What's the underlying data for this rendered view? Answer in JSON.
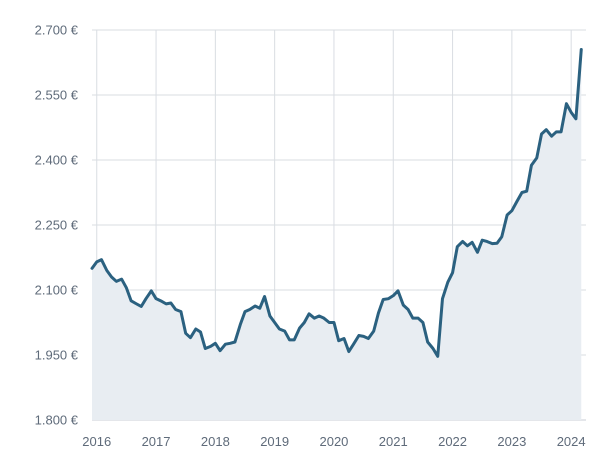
{
  "chart_data": {
    "type": "area",
    "title": "",
    "xlabel": "",
    "ylabel": "",
    "xlim": [
      2015.92,
      2024.25
    ],
    "ylim": [
      1800,
      2700
    ],
    "grid": true,
    "legend": "none",
    "y_ticks": [
      {
        "value": 1800,
        "label": "1.800 €"
      },
      {
        "value": 1950,
        "label": "1.950 €"
      },
      {
        "value": 2100,
        "label": "2.100 €"
      },
      {
        "value": 2250,
        "label": "2.250 €"
      },
      {
        "value": 2400,
        "label": "2.400 €"
      },
      {
        "value": 2550,
        "label": "2.550 €"
      },
      {
        "value": 2700,
        "label": "2.700 €"
      }
    ],
    "x_ticks": [
      {
        "value": 2016,
        "label": "2016"
      },
      {
        "value": 2017,
        "label": "2017"
      },
      {
        "value": 2018,
        "label": "2018"
      },
      {
        "value": 2019,
        "label": "2019"
      },
      {
        "value": 2020,
        "label": "2020"
      },
      {
        "value": 2021,
        "label": "2021"
      },
      {
        "value": 2022,
        "label": "2022"
      },
      {
        "value": 2023,
        "label": "2023"
      },
      {
        "value": 2024,
        "label": "2024"
      }
    ],
    "series": [
      {
        "color": "#2b6180",
        "fill": "#e8edf2",
        "points": [
          [
            2015.92,
            2150
          ],
          [
            2016.0,
            2165
          ],
          [
            2016.08,
            2170
          ],
          [
            2016.17,
            2145
          ],
          [
            2016.25,
            2130
          ],
          [
            2016.33,
            2120
          ],
          [
            2016.42,
            2125
          ],
          [
            2016.5,
            2105
          ],
          [
            2016.58,
            2075
          ],
          [
            2016.67,
            2068
          ],
          [
            2016.75,
            2062
          ],
          [
            2016.83,
            2080
          ],
          [
            2016.92,
            2098
          ],
          [
            2017.0,
            2080
          ],
          [
            2017.08,
            2075
          ],
          [
            2017.17,
            2068
          ],
          [
            2017.25,
            2070
          ],
          [
            2017.33,
            2055
          ],
          [
            2017.42,
            2050
          ],
          [
            2017.5,
            2000
          ],
          [
            2017.58,
            1990
          ],
          [
            2017.67,
            2010
          ],
          [
            2017.75,
            2003
          ],
          [
            2017.83,
            1965
          ],
          [
            2017.92,
            1970
          ],
          [
            2018.0,
            1977
          ],
          [
            2018.08,
            1960
          ],
          [
            2018.17,
            1975
          ],
          [
            2018.25,
            1977
          ],
          [
            2018.33,
            1980
          ],
          [
            2018.42,
            2020
          ],
          [
            2018.5,
            2050
          ],
          [
            2018.58,
            2055
          ],
          [
            2018.67,
            2063
          ],
          [
            2018.75,
            2058
          ],
          [
            2018.83,
            2085
          ],
          [
            2018.92,
            2040
          ],
          [
            2019.0,
            2025
          ],
          [
            2019.08,
            2010
          ],
          [
            2019.17,
            2005
          ],
          [
            2019.25,
            1985
          ],
          [
            2019.33,
            1985
          ],
          [
            2019.42,
            2012
          ],
          [
            2019.5,
            2025
          ],
          [
            2019.58,
            2045
          ],
          [
            2019.67,
            2035
          ],
          [
            2019.75,
            2040
          ],
          [
            2019.83,
            2035
          ],
          [
            2019.92,
            2025
          ],
          [
            2020.0,
            2025
          ],
          [
            2020.08,
            1983
          ],
          [
            2020.17,
            1988
          ],
          [
            2020.25,
            1958
          ],
          [
            2020.33,
            1975
          ],
          [
            2020.42,
            1995
          ],
          [
            2020.5,
            1993
          ],
          [
            2020.58,
            1988
          ],
          [
            2020.67,
            2005
          ],
          [
            2020.75,
            2047
          ],
          [
            2020.83,
            2078
          ],
          [
            2020.92,
            2080
          ],
          [
            2021.0,
            2087
          ],
          [
            2021.08,
            2098
          ],
          [
            2021.17,
            2065
          ],
          [
            2021.25,
            2055
          ],
          [
            2021.33,
            2035
          ],
          [
            2021.42,
            2035
          ],
          [
            2021.5,
            2025
          ],
          [
            2021.58,
            1980
          ],
          [
            2021.67,
            1965
          ],
          [
            2021.75,
            1947
          ],
          [
            2021.83,
            2080
          ],
          [
            2021.92,
            2118
          ],
          [
            2022.0,
            2140
          ],
          [
            2022.08,
            2200
          ],
          [
            2022.17,
            2212
          ],
          [
            2022.25,
            2202
          ],
          [
            2022.33,
            2210
          ],
          [
            2022.42,
            2187
          ],
          [
            2022.5,
            2215
          ],
          [
            2022.58,
            2212
          ],
          [
            2022.67,
            2207
          ],
          [
            2022.75,
            2208
          ],
          [
            2022.83,
            2223
          ],
          [
            2022.92,
            2273
          ],
          [
            2023.0,
            2283
          ],
          [
            2023.08,
            2303
          ],
          [
            2023.17,
            2325
          ],
          [
            2023.25,
            2328
          ],
          [
            2023.33,
            2388
          ],
          [
            2023.42,
            2405
          ],
          [
            2023.5,
            2460
          ],
          [
            2023.58,
            2470
          ],
          [
            2023.67,
            2455
          ],
          [
            2023.75,
            2465
          ],
          [
            2023.83,
            2465
          ],
          [
            2023.92,
            2530
          ],
          [
            2024.0,
            2510
          ],
          [
            2024.08,
            2495
          ],
          [
            2024.17,
            2655
          ]
        ]
      }
    ]
  }
}
